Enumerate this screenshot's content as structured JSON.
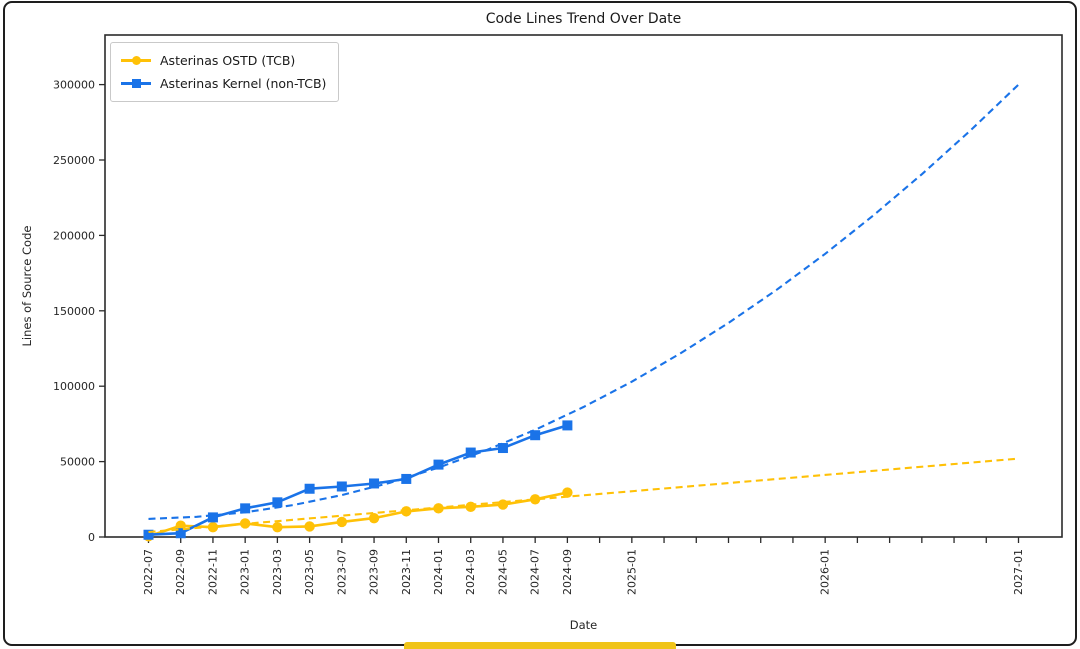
{
  "frame": {
    "border_color": "#1e1e1e",
    "background": "#ffffff",
    "bottom_accent_color": "#F0C419"
  },
  "chart_data": {
    "type": "line",
    "title": "Code Lines Trend Over Date",
    "xlabel": "Date",
    "ylabel": "Lines of Source Code",
    "legend_position": "upper left",
    "grid": false,
    "ylim": [
      0,
      332000
    ],
    "axis_color": "#2b2b2b",
    "y_ticks": [
      {
        "v": 0,
        "label": "0"
      },
      {
        "v": 50000,
        "label": "50000"
      },
      {
        "v": 100000,
        "label": "100000"
      },
      {
        "v": 150000,
        "label": "150000"
      },
      {
        "v": 200000,
        "label": "200000"
      },
      {
        "v": 250000,
        "label": "250000"
      },
      {
        "v": 300000,
        "label": "300000"
      }
    ],
    "x_ticks": [
      {
        "t": 0,
        "label": "2022-07"
      },
      {
        "t": 2,
        "label": "2022-09"
      },
      {
        "t": 4,
        "label": "2022-11"
      },
      {
        "t": 6,
        "label": "2023-01"
      },
      {
        "t": 8,
        "label": "2023-03"
      },
      {
        "t": 10,
        "label": "2023-05"
      },
      {
        "t": 12,
        "label": "2023-07"
      },
      {
        "t": 14,
        "label": "2023-09"
      },
      {
        "t": 16,
        "label": "2023-11"
      },
      {
        "t": 18,
        "label": "2024-01"
      },
      {
        "t": 20,
        "label": "2024-03"
      },
      {
        "t": 22,
        "label": "2024-05"
      },
      {
        "t": 24,
        "label": "2024-07"
      },
      {
        "t": 26,
        "label": "2024-09"
      },
      {
        "t": 28,
        "label": ""
      },
      {
        "t": 30,
        "label": "2025-01"
      },
      {
        "t": 32,
        "label": ""
      },
      {
        "t": 34,
        "label": ""
      },
      {
        "t": 36,
        "label": ""
      },
      {
        "t": 38,
        "label": ""
      },
      {
        "t": 40,
        "label": ""
      },
      {
        "t": 42,
        "label": "2026-01"
      },
      {
        "t": 44,
        "label": ""
      },
      {
        "t": 46,
        "label": ""
      },
      {
        "t": 48,
        "label": ""
      },
      {
        "t": 50,
        "label": ""
      },
      {
        "t": 52,
        "label": ""
      },
      {
        "t": 54,
        "label": "2027-01"
      }
    ],
    "series": [
      {
        "name": "Asterinas OSTD (TCB)",
        "color": "#FFC107",
        "marker": "circle",
        "line_style": "solid",
        "dates": [
          "2022-07",
          "2022-09",
          "2022-11",
          "2023-01",
          "2023-03",
          "2023-05",
          "2023-07",
          "2023-09",
          "2023-11",
          "2024-01",
          "2024-03",
          "2024-05",
          "2024-07",
          "2024-09"
        ],
        "t": [
          0,
          2,
          4,
          6,
          8,
          10,
          12,
          14,
          16,
          18,
          20,
          22,
          24,
          26
        ],
        "values": [
          500,
          7500,
          6500,
          9000,
          6500,
          7000,
          10000,
          12500,
          17000,
          19000,
          20000,
          21500,
          25000,
          29500
        ]
      },
      {
        "name": "Asterinas Kernel (non-TCB)",
        "color": "#1A73E8",
        "marker": "square",
        "line_style": "solid",
        "dates": [
          "2022-07",
          "2022-09",
          "2022-11",
          "2023-01",
          "2023-03",
          "2023-05",
          "2023-07",
          "2023-09",
          "2023-11",
          "2024-01",
          "2024-03",
          "2024-05",
          "2024-07",
          "2024-09"
        ],
        "t": [
          0,
          2,
          4,
          6,
          8,
          10,
          12,
          14,
          16,
          18,
          20,
          22,
          24,
          26
        ],
        "values": [
          1500,
          2500,
          13000,
          19000,
          23000,
          32000,
          33500,
          35500,
          38500,
          48000,
          56000,
          59000,
          67500,
          74000
        ]
      }
    ],
    "trend_series": [
      {
        "name": "ostd-trend-projection",
        "color": "#FFC107",
        "line_style": "dashed",
        "t": [
          0,
          54
        ],
        "values": [
          3300,
          52000
        ]
      },
      {
        "name": "kernel-trend-projection",
        "color": "#1A73E8",
        "line_style": "dashed",
        "t": [
          0,
          3,
          6,
          9,
          12,
          15,
          18,
          21,
          24,
          27,
          30,
          33,
          36,
          39,
          42,
          45,
          48,
          51,
          54
        ],
        "values": [
          12000,
          13400,
          16400,
          21200,
          27800,
          36000,
          46000,
          57700,
          71100,
          86200,
          103000,
          121700,
          142000,
          164000,
          187800,
          213300,
          240500,
          269400,
          300000
        ]
      }
    ]
  }
}
